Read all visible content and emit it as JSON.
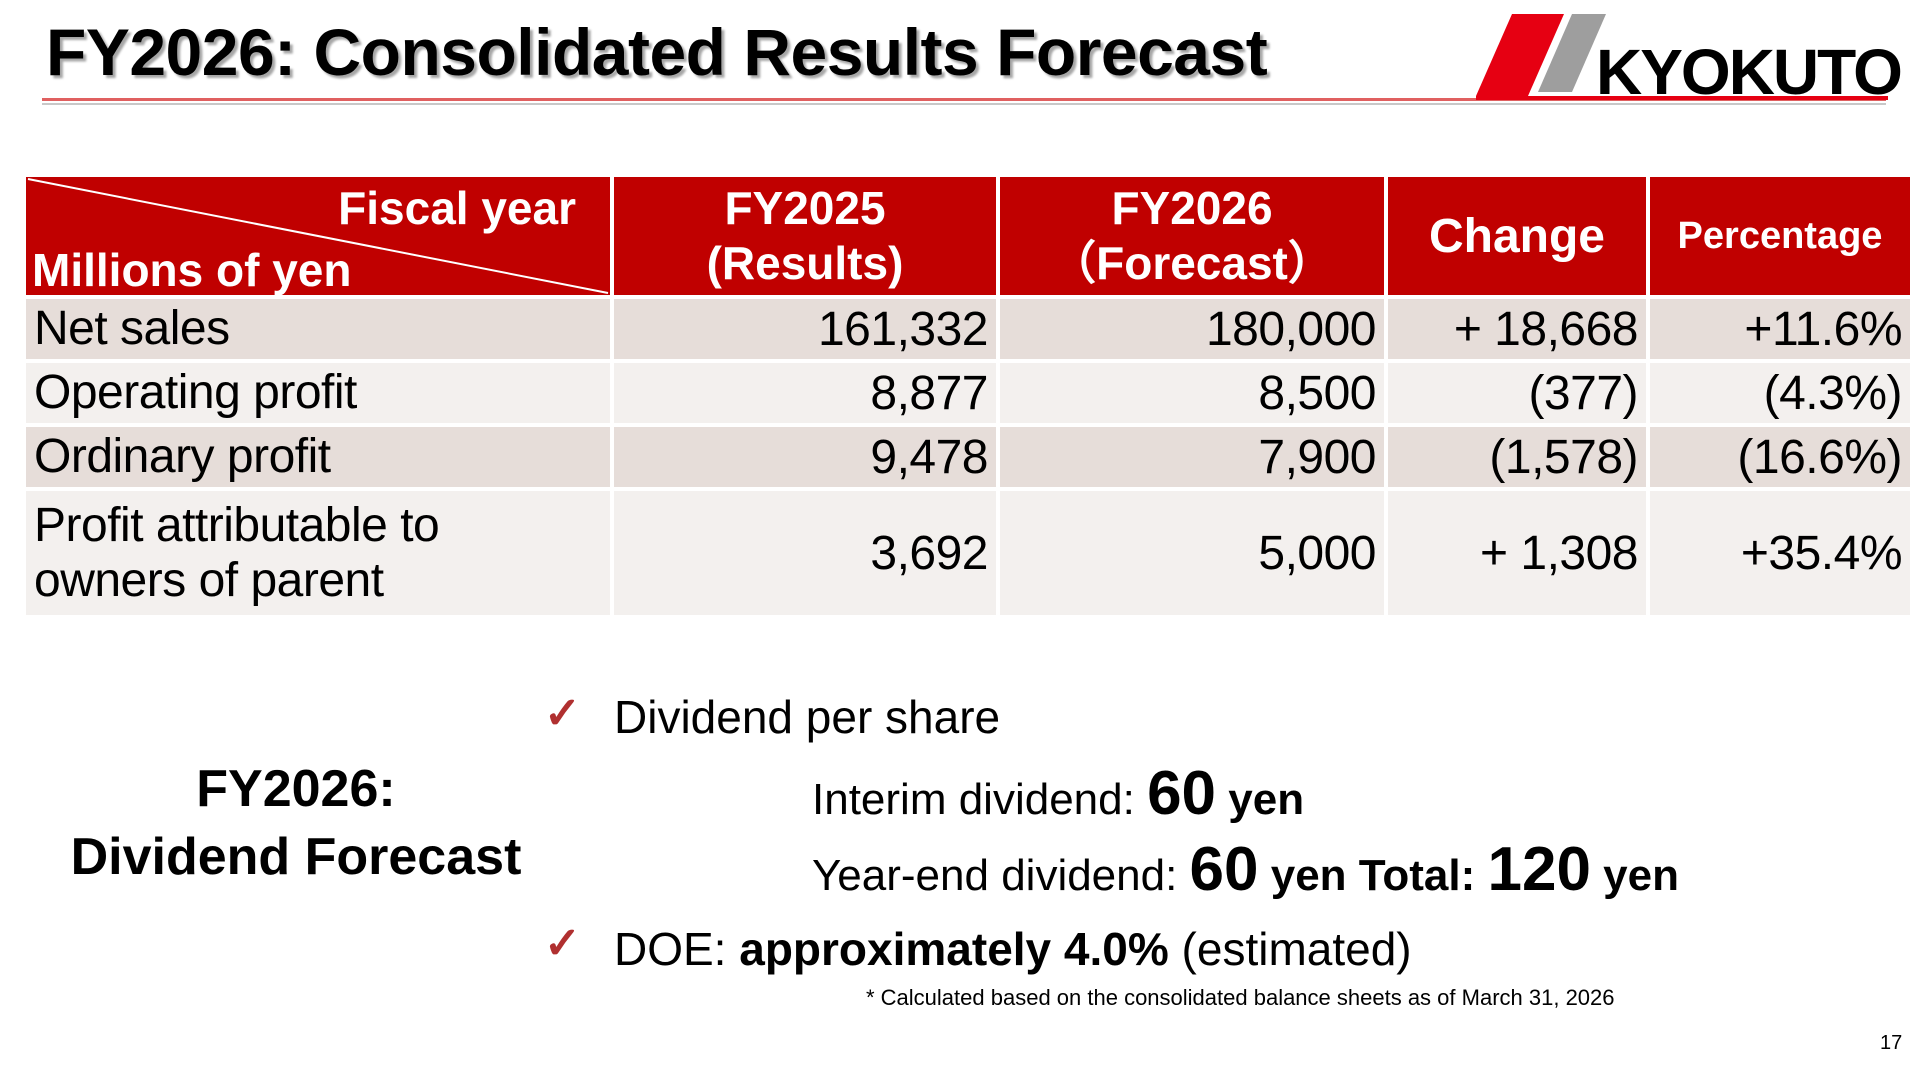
{
  "title": "FY2026: Consolidated Results Forecast",
  "logo": {
    "text": "KYOKUTO",
    "colors": [
      "#e60012",
      "#9e9e9e"
    ]
  },
  "table": {
    "corner_top": "Fiscal year",
    "corner_bottom": "Millions of yen",
    "headers": [
      {
        "line1": "FY2025",
        "line2": "(Results)"
      },
      {
        "line1": "FY2026",
        "line2": "（Forecast）"
      },
      {
        "line1": "Change"
      },
      {
        "line1": "Percentage"
      }
    ],
    "rows": [
      {
        "label": "Net sales",
        "fy2025": "161,332",
        "fy2026": "180,000",
        "change": "+ 18,668",
        "percentage": "+11.6%"
      },
      {
        "label": "Operating profit",
        "fy2025": "8,877",
        "fy2026": "8,500",
        "change": "(377)",
        "percentage": "(4.3%)"
      },
      {
        "label": "Ordinary profit",
        "fy2025": "9,478",
        "fy2026": "7,900",
        "change": "(1,578)",
        "percentage": "(16.6%)"
      },
      {
        "label_line1": "Profit attributable to",
        "label_line2": "owners of parent",
        "fy2025": "3,692",
        "fy2026": "5,000",
        "change": "+ 1,308",
        "percentage": "+35.4%"
      }
    ],
    "header_color": "#c00000"
  },
  "dividend": {
    "title_line1": "FY2026:",
    "title_line2": "Dividend Forecast",
    "check_mark": "✓",
    "item1": "Dividend per share",
    "interim_label": "Interim dividend: ",
    "interim_value": "60",
    "interim_unit": " yen",
    "yearend_label": "Year-end dividend: ",
    "yearend_value": "60",
    "yearend_unit": " yen",
    "total_label": " Total: ",
    "total_value": "120",
    "total_unit": " yen",
    "doe_label": "DOE: ",
    "doe_value": "approximately 4.0%",
    "doe_suffix": " (estimated)",
    "footnote": "* Calculated based on the consolidated balance sheets as of March 31, 2026"
  },
  "page_number": "17"
}
